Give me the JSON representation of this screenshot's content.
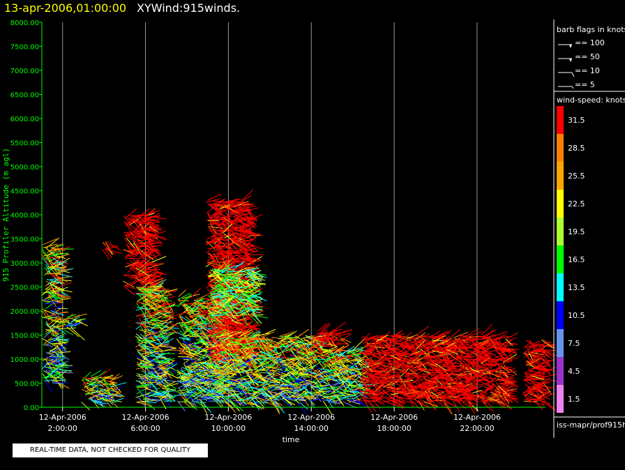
{
  "header": {
    "date": "13-apr-2006,01:00:00",
    "name": "XYWind:915winds."
  },
  "notice": "REAL-TIME DATA, NOT CHECKED FOR QUALITY",
  "legend": {
    "barb_title": "barb flags in knots",
    "barb_items": [
      "== 100",
      "== 50",
      "== 10",
      "== 5"
    ],
    "speed_title": "wind-speed: knots",
    "source": "iss-mapr/prof915h"
  },
  "chart_data": {
    "type": "scatter",
    "title": "",
    "xlabel": "time",
    "ylabel": "915 Profiler Altitude (m agl)",
    "ylim": [
      0,
      8000
    ],
    "y_ticks": [
      "0.00",
      "500.00",
      "1000.00",
      "1500.00",
      "2000.00",
      "2500.00",
      "3000.00",
      "3500.00",
      "4000.00",
      "4500.00",
      "5000.00",
      "5500.00",
      "6000.00",
      "6500.00",
      "7000.00",
      "7500.00",
      "8000.00"
    ],
    "x_ticks": [
      {
        "hour": 2,
        "date": "12-Apr-2006",
        "time": "2:00:00"
      },
      {
        "hour": 6,
        "date": "12-Apr-2006",
        "time": "6:00:00"
      },
      {
        "hour": 10,
        "date": "12-Apr-2006",
        "time": "10:00:00"
      },
      {
        "hour": 14,
        "date": "12-Apr-2006",
        "time": "14:00:00"
      },
      {
        "hour": 18,
        "date": "12-Apr-2006",
        "time": "18:00:00"
      },
      {
        "hour": 22,
        "date": "12-Apr-2006",
        "time": "22:00:00"
      }
    ],
    "x_range_hours": [
      1.0,
      25.3
    ],
    "grid": "vertical lines at tick hours",
    "colorbar": {
      "labels": [
        "31.5",
        "28.5",
        "25.5",
        "22.5",
        "19.5",
        "16.5",
        "13.5",
        "10.5",
        "7.5",
        "4.5",
        "1.5"
      ],
      "colors": [
        "#ff0000",
        "#ff8000",
        "#ffa500",
        "#ffff00",
        "#adff2f",
        "#00ff00",
        "#00ffff",
        "#0000ff",
        "#6495ed",
        "#9932cc",
        "#ee82ee"
      ]
    },
    "clusters": [
      {
        "t0": 1.0,
        "t1": 1.8,
        "h0": 500,
        "h1": 3400,
        "speed": "mixed"
      },
      {
        "t0": 1.9,
        "t1": 2.6,
        "h0": 1600,
        "h1": 1900,
        "speed": "mixed"
      },
      {
        "t0": 2.9,
        "t1": 4.4,
        "h0": 100,
        "h1": 650,
        "speed": "mixed"
      },
      {
        "t0": 3.9,
        "t1": 4.2,
        "h0": 3250,
        "h1": 3450,
        "speed": "high"
      },
      {
        "t0": 4.9,
        "t1": 6.3,
        "h0": 2500,
        "h1": 4000,
        "speed": "high"
      },
      {
        "t0": 5.5,
        "t1": 7.0,
        "h0": 100,
        "h1": 2500,
        "speed": "mixed"
      },
      {
        "t0": 7.5,
        "t1": 9.5,
        "h0": 100,
        "h1": 2300,
        "speed": "mixed"
      },
      {
        "t0": 8.9,
        "t1": 11.0,
        "h0": 1000,
        "h1": 4300,
        "speed": "high"
      },
      {
        "t0": 9.0,
        "t1": 11.2,
        "h0": 1900,
        "h1": 2900,
        "speed": "mid"
      },
      {
        "t0": 9.0,
        "t1": 14.5,
        "h0": 100,
        "h1": 1500,
        "speed": "mixed"
      },
      {
        "t0": 14.0,
        "t1": 15.5,
        "h0": 1300,
        "h1": 1600,
        "speed": "high"
      },
      {
        "t0": 14.5,
        "t1": 16.3,
        "h0": 100,
        "h1": 1200,
        "speed": "mixed"
      },
      {
        "t0": 16.3,
        "t1": 23.4,
        "h0": 100,
        "h1": 1500,
        "speed": "high"
      },
      {
        "t0": 24.2,
        "t1": 25.2,
        "h0": 100,
        "h1": 1450,
        "speed": "high"
      }
    ]
  }
}
